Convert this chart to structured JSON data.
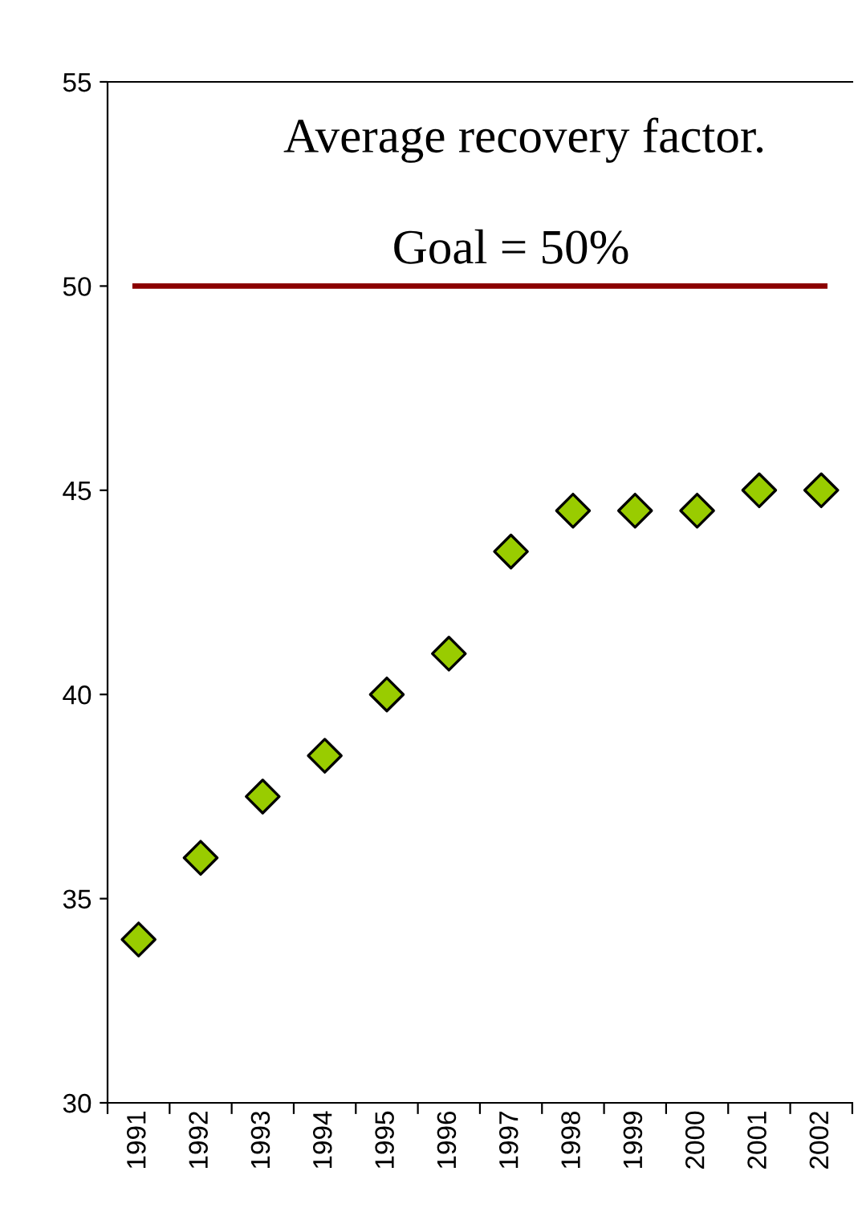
{
  "chart_data": {
    "type": "scatter",
    "annotations": [
      "Average recovery factor."
    ],
    "categories": [
      "1991",
      "1992",
      "1993",
      "1994",
      "1995",
      "1996",
      "1997",
      "1998",
      "1999",
      "2000",
      "2001",
      "2002"
    ],
    "series": [
      {
        "color": "#99cc00",
        "values": [
          34,
          36,
          37.5,
          38.5,
          40,
          41,
          43.5,
          44.5,
          44.5,
          44.5,
          45,
          45
        ]
      }
    ],
    "marker": "diamond",
    "ylim": [
      30,
      55
    ],
    "yticks": [
      30,
      35,
      40,
      45,
      50,
      55
    ],
    "grid": false,
    "ref_lines": [
      {
        "axis": "y",
        "value": 50,
        "label": "Goal = 50%",
        "color": "#8b0000"
      }
    ]
  }
}
